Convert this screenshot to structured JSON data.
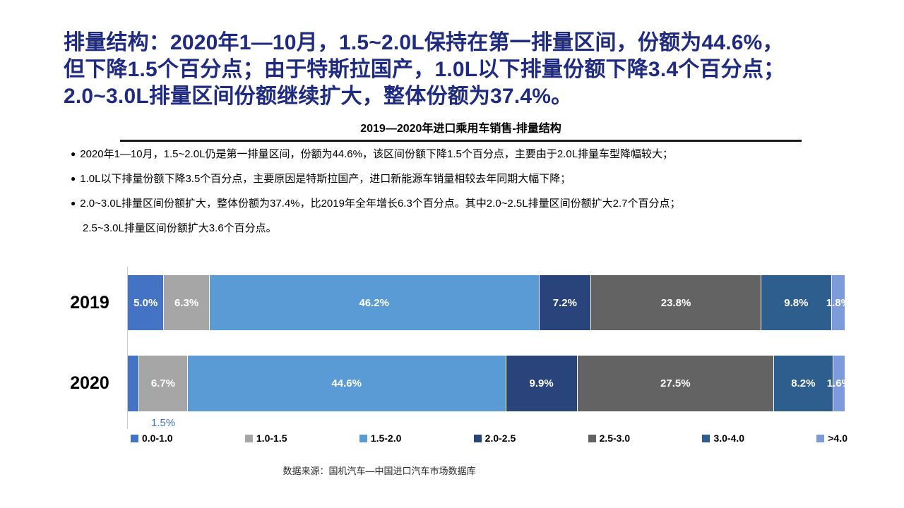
{
  "header": {
    "title_lines": [
      "排量结构：2020年1—10月，1.5~2.0L保持在第一排量区间，份额为44.6%，",
      "但下降1.5个百分点；由于特斯拉国产，1.0L以下排量份额下降3.4个百分点；",
      "2.0~3.0L排量区间份额继续扩大，整体份额为37.4%。"
    ],
    "title_color": "#1F2B80"
  },
  "chart_section": {
    "chart_title": "2019—2020年进口乘用车销售-排量结构",
    "bullet_marker": "●",
    "bullets": [
      "2020年1—10月，1.5~2.0L仍是第一排量区间，份额为44.6%，该区间份额下降1.5个百分点，主要由于2.0L排量车型降幅较大；",
      "1.0L以下排量份额下降3.5个百分点，主要原因是特斯拉国产，进口新能源车销量相较去年同期大幅下降；",
      "2.0~3.0L排量区间份额扩大，整体份额为37.4%，比2019年全年增长6.3个百分点。其中2.0~2.5L排量区间份额扩大2.7个百分点；"
    ],
    "bullet_continuation": "2.5~3.0L排量区间份额扩大3.6个百分点。"
  },
  "chart_data": {
    "type": "bar",
    "stacked": true,
    "orientation": "horizontal",
    "title": "2019—2020年进口乘用车销售-排量结构",
    "categories": [
      "2019",
      "2020"
    ],
    "series": [
      {
        "name": "0.0-1.0",
        "color": "#4472C4",
        "values": [
          5.0,
          1.5
        ]
      },
      {
        "name": "1.0-1.5",
        "color": "#A6A6A6",
        "values": [
          6.3,
          6.7
        ]
      },
      {
        "name": "1.5-2.0",
        "color": "#5B9BD5",
        "values": [
          46.2,
          44.6
        ]
      },
      {
        "name": "2.0-2.5",
        "color": "#29437B",
        "values": [
          7.2,
          9.9
        ]
      },
      {
        "name": "2.5-3.0",
        "color": "#636363",
        "values": [
          23.8,
          27.5
        ]
      },
      {
        "name": "3.0-4.0",
        "color": "#2D5E8E",
        "values": [
          9.8,
          8.2
        ]
      },
      {
        "name": ">4.0",
        "color": "#7D9BDB",
        "values": [
          1.8,
          1.6
        ]
      }
    ],
    "data_labels": [
      [
        "5.0%",
        "6.3%",
        "46.2%",
        "7.2%",
        "23.8%",
        "9.8%",
        "1.8%"
      ],
      [
        "1.5%",
        "6.7%",
        "44.6%",
        "9.9%",
        "27.5%",
        "8.2%",
        "1.6%"
      ]
    ],
    "outside_label": {
      "text": "1.5%",
      "row": "2020",
      "series": "0.0-1.0",
      "color": "#4472C4"
    },
    "xlim": [
      0,
      100
    ],
    "grid": false,
    "legend_position": "bottom"
  },
  "footer": {
    "source": "数据来源：国机汽车—中国进口汽车市场数据库"
  }
}
